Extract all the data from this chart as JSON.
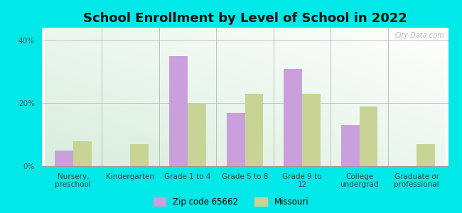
{
  "title": "School Enrollment by Level of School in 2022",
  "categories": [
    "Nursery,\npreschool",
    "Kindergarten",
    "Grade 1 to 4",
    "Grade 5 to 8",
    "Grade 9 to\n12",
    "College\nundergrad",
    "Graduate or\nprofessional"
  ],
  "zip_values": [
    5,
    0,
    35,
    17,
    31,
    13,
    0
  ],
  "mo_values": [
    8,
    7,
    20,
    23,
    23,
    19,
    7
  ],
  "zip_color": "#c9a0dc",
  "mo_color": "#c8d496",
  "background_color": "#00e8e8",
  "title_fontsize": 13,
  "tick_fontsize": 7.5,
  "legend_labels": [
    "Zip code 65662",
    "Missouri"
  ],
  "ylim": [
    0,
    44
  ],
  "yticks": [
    0,
    20,
    40
  ],
  "ytick_labels": [
    "0%",
    "20%",
    "40%"
  ],
  "bar_width": 0.32,
  "watermark": "City-Data.com"
}
